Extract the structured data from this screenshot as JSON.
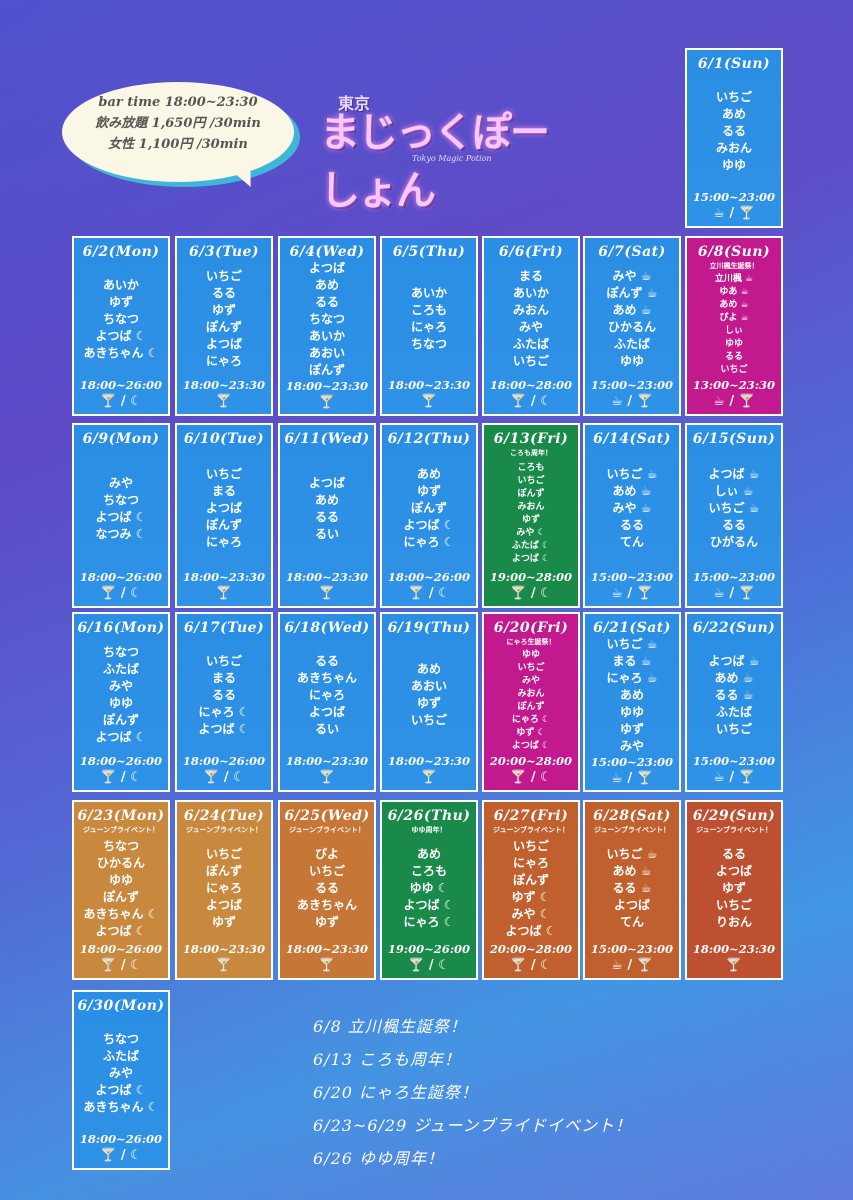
{
  "header": {
    "bar_time": "bar time 18:00~23:30",
    "nomihoudai": "飲み放題 1,650円 /30min",
    "female": "女性 1,100円 /30min",
    "logo_kanji": "東京",
    "logo_main": "まじっくぽーしょん",
    "logo_sub": "Tokyo Magic Potion"
  },
  "days": [
    {
      "date": "6/1(Sun)",
      "note": "",
      "names": [
        "いちご",
        "あめ",
        "るる",
        "みおん",
        "ゆゆ"
      ],
      "time": "15:00~23:00",
      "icons": "☕ / 🍸"
    },
    {
      "date": "6/2(Mon)",
      "note": "",
      "names": [
        "あいか",
        "ゆず",
        "ちなつ",
        "よつば ☾",
        "あきちゃん ☾"
      ],
      "time": "18:00~26:00",
      "icons": "🍸 / ☾"
    },
    {
      "date": "6/3(Tue)",
      "note": "",
      "names": [
        "いちご",
        "るる",
        "ゆず",
        "ぽんず",
        "よつば",
        "にゃろ"
      ],
      "time": "18:00~23:30",
      "icons": "🍸"
    },
    {
      "date": "6/4(Wed)",
      "note": "",
      "names": [
        "よつば",
        "あめ",
        "るる",
        "ちなつ",
        "あいか",
        "あおい",
        "ぽんず"
      ],
      "time": "18:00~23:30",
      "icons": "🍸"
    },
    {
      "date": "6/5(Thu)",
      "note": "",
      "names": [
        "あいか",
        "ころも",
        "にゃろ",
        "ちなつ"
      ],
      "time": "18:00~23:30",
      "icons": "🍸"
    },
    {
      "date": "6/6(Fri)",
      "note": "",
      "names": [
        "まる",
        "あいか",
        "みおん",
        "みや",
        "ふたば",
        "いちご"
      ],
      "time": "18:00~28:00",
      "icons": "🍸 / ☾"
    },
    {
      "date": "6/7(Sat)",
      "note": "",
      "names": [
        "みや ☕",
        "ぽんず ☕",
        "あめ ☕",
        "ひかるん",
        "ふたば",
        "ゆゆ"
      ],
      "time": "15:00~23:00",
      "icons": "☕ / 🍸"
    },
    {
      "date": "6/8(Sun)",
      "note": "立川楓生誕祭！",
      "names": [
        "立川楓 ☕",
        "ゆあ ☕",
        "あめ ☕",
        "ぴよ ☕",
        "しぃ",
        "ゆゆ",
        "るる",
        "いちご"
      ],
      "time": "13:00~23:30",
      "icons": "☕ / 🍸"
    },
    {
      "date": "6/9(Mon)",
      "note": "",
      "names": [
        "みや",
        "ちなつ",
        "よつば ☾",
        "なつみ ☾"
      ],
      "time": "18:00~26:00",
      "icons": "🍸 / ☾"
    },
    {
      "date": "6/10(Tue)",
      "note": "",
      "names": [
        "いちご",
        "まる",
        "よつば",
        "ぽんず",
        "にゃろ"
      ],
      "time": "18:00~23:30",
      "icons": "🍸"
    },
    {
      "date": "6/11(Wed)",
      "note": "",
      "names": [
        "よつば",
        "あめ",
        "るる",
        "るい"
      ],
      "time": "18:00~23:30",
      "icons": "🍸"
    },
    {
      "date": "6/12(Thu)",
      "note": "",
      "names": [
        "あめ",
        "ゆず",
        "ぽんず",
        "よつば ☾",
        "にゃろ ☾"
      ],
      "time": "18:00~26:00",
      "icons": "🍸 / ☾"
    },
    {
      "date": "6/13(Fri)",
      "note": "ころも周年！",
      "names": [
        "ころも",
        "いちご",
        "ぽんず",
        "みおん",
        "ゆず",
        "みや ☾",
        "ふたば ☾",
        "よつば ☾"
      ],
      "time": "19:00~28:00",
      "icons": "🍸 / ☾"
    },
    {
      "date": "6/14(Sat)",
      "note": "",
      "names": [
        "いちご ☕",
        "あめ ☕",
        "みや ☕",
        "るる",
        "てん"
      ],
      "time": "15:00~23:00",
      "icons": "☕ / 🍸"
    },
    {
      "date": "6/15(Sun)",
      "note": "",
      "names": [
        "よつば ☕",
        "しぃ ☕",
        "いちご ☕",
        "るる",
        "ひがるん"
      ],
      "time": "15:00~23:00",
      "icons": "☕ / 🍸"
    },
    {
      "date": "6/16(Mon)",
      "note": "",
      "names": [
        "ちなつ",
        "ふたば",
        "みや",
        "ゆゆ",
        "ぽんず",
        "よつば ☾"
      ],
      "time": "18:00~26:00",
      "icons": "🍸 / ☾"
    },
    {
      "date": "6/17(Tue)",
      "note": "",
      "names": [
        "いちご",
        "まる",
        "るる",
        "にゃろ ☾",
        "よつば ☾"
      ],
      "time": "18:00~26:00",
      "icons": "🍸 / ☾"
    },
    {
      "date": "6/18(Wed)",
      "note": "",
      "names": [
        "るる",
        "あきちゃん",
        "にゃろ",
        "よつば",
        "るい"
      ],
      "time": "18:00~23:30",
      "icons": "🍸"
    },
    {
      "date": "6/19(Thu)",
      "note": "",
      "names": [
        "あめ",
        "あおい",
        "ゆず",
        "いちご"
      ],
      "time": "18:00~23:30",
      "icons": "🍸"
    },
    {
      "date": "6/20(Fri)",
      "note": "にゃろ生誕祭！",
      "names": [
        "ゆゆ",
        "いちご",
        "みや",
        "みおん",
        "ぽんず",
        "にゃろ ☾",
        "ゆず ☾",
        "よつば ☾"
      ],
      "time": "20:00~28:00",
      "icons": "🍸 / ☾"
    },
    {
      "date": "6/21(Sat)",
      "note": "",
      "names": [
        "いちご ☕",
        "まる ☕",
        "にゃろ ☕",
        "あめ",
        "ゆゆ",
        "ゆず",
        "みや"
      ],
      "time": "15:00~23:00",
      "icons": "☕ / 🍸"
    },
    {
      "date": "6/22(Sun)",
      "note": "",
      "names": [
        "よつば ☕",
        "あめ ☕",
        "るる ☕",
        "ふたば",
        "いちご"
      ],
      "time": "15:00~23:00",
      "icons": "☕ / 🍸"
    },
    {
      "date": "6/23(Mon)",
      "note": "ジューンブライベント！",
      "names": [
        "ちなつ",
        "ひかるん",
        "ゆゆ",
        "ぽんず",
        "あきちゃん ☾",
        "よつば ☾"
      ],
      "time": "18:00~26:00",
      "icons": "🍸 / ☾"
    },
    {
      "date": "6/24(Tue)",
      "note": "ジューンブライベント！",
      "names": [
        "いちご",
        "ぽんず",
        "にゃろ",
        "よつば",
        "ゆず"
      ],
      "time": "18:00~23:30",
      "icons": "🍸"
    },
    {
      "date": "6/25(Wed)",
      "note": "ジューンブライベント！",
      "names": [
        "ぴよ",
        "いちご",
        "るる",
        "あきちゃん",
        "ゆず"
      ],
      "time": "18:00~23:30",
      "icons": "🍸"
    },
    {
      "date": "6/26(Thu)",
      "note": "ゆゆ周年！",
      "names": [
        "あめ",
        "ころも",
        "ゆゆ ☾",
        "よつば ☾",
        "にゃろ ☾"
      ],
      "time": "19:00~26:00",
      "icons": "🍸 / ☾"
    },
    {
      "date": "6/27(Fri)",
      "note": "ジューンブライベント！",
      "names": [
        "いちご",
        "にゃろ",
        "ぽんず",
        "ゆず ☾",
        "みや ☾",
        "よつば ☾"
      ],
      "time": "20:00~28:00",
      "icons": "🍸 / ☾"
    },
    {
      "date": "6/28(Sat)",
      "note": "ジューンブライベント！",
      "names": [
        "いちご ☕",
        "あめ ☕",
        "るる ☕",
        "よつば",
        "てん"
      ],
      "time": "15:00~23:00",
      "icons": "☕ / 🍸"
    },
    {
      "date": "6/29(Sun)",
      "note": "ジューンブライベント！",
      "names": [
        "るる",
        "よつば",
        "ゆず",
        "いちご",
        "りおん"
      ],
      "time": "18:00~23:30",
      "icons": "🍸"
    },
    {
      "date": "6/30(Mon)",
      "note": "",
      "names": [
        "ちなつ",
        "ふたば",
        "みや",
        "よつば ☾",
        "あきちゃん ☾"
      ],
      "time": "18:00~26:00",
      "icons": "🍸 / ☾"
    }
  ],
  "events": [
    "6/8 立川楓生誕祭！",
    "6/13 ころも周年！",
    "6/20 にゃろ生誕祭！",
    "6/23~6/29 ジューンブライドイベント！",
    "6/26 ゆゆ周年！"
  ]
}
